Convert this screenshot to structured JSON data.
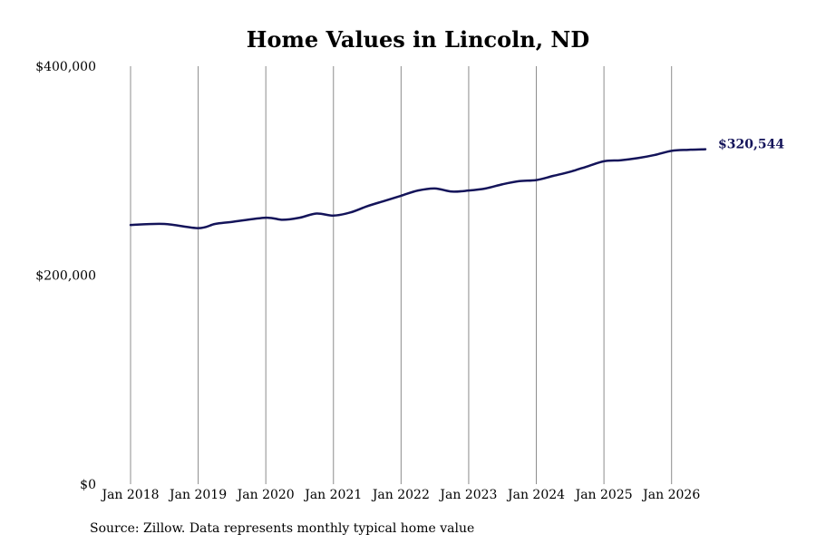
{
  "chart_data": {
    "type": "line",
    "title": "Home Values in Lincoln, ND",
    "source_note": "Source: Zillow. Data represents monthly typical home value",
    "end_label": "$320,544",
    "y_ticks": [
      {
        "value": 0,
        "label": "$0"
      },
      {
        "value": 200000,
        "label": "$200,000"
      },
      {
        "value": 400000,
        "label": "$400,000"
      }
    ],
    "x_ticks": [
      {
        "value": "2018-01",
        "label": "Jan 2018"
      },
      {
        "value": "2019-01",
        "label": "Jan 2019"
      },
      {
        "value": "2020-01",
        "label": "Jan 2020"
      },
      {
        "value": "2021-01",
        "label": "Jan 2021"
      },
      {
        "value": "2022-01",
        "label": "Jan 2022"
      },
      {
        "value": "2023-01",
        "label": "Jan 2023"
      },
      {
        "value": "2024-01",
        "label": "Jan 2024"
      },
      {
        "value": "2025-01",
        "label": "Jan 2025"
      },
      {
        "value": "2026-01",
        "label": "Jan 2026"
      }
    ],
    "ylim": [
      0,
      400000
    ],
    "xlim": [
      "2018-01",
      "2026-07"
    ],
    "grid": "vertical",
    "line_color": "#14145a",
    "series": [
      {
        "x": [
          "2018-01",
          "2018-07",
          "2019-01",
          "2019-04",
          "2019-07",
          "2020-01",
          "2020-04",
          "2020-07",
          "2020-10",
          "2021-01",
          "2021-04",
          "2021-07",
          "2021-10",
          "2022-01",
          "2022-04",
          "2022-07",
          "2022-10",
          "2023-01",
          "2023-04",
          "2023-07",
          "2023-10",
          "2024-01",
          "2024-04",
          "2024-07",
          "2024-10",
          "2025-01",
          "2025-04",
          "2025-07",
          "2025-10",
          "2026-01",
          "2026-04",
          "2026-07"
        ],
        "y": [
          248000,
          249000,
          245000,
          249000,
          251000,
          255000,
          253000,
          255000,
          259000,
          257000,
          260000,
          266000,
          271000,
          276000,
          281000,
          283000,
          280000,
          281000,
          283000,
          287000,
          290000,
          291000,
          295000,
          299000,
          304000,
          309000,
          310000,
          312000,
          315000,
          319000,
          320000,
          320544
        ]
      }
    ]
  }
}
